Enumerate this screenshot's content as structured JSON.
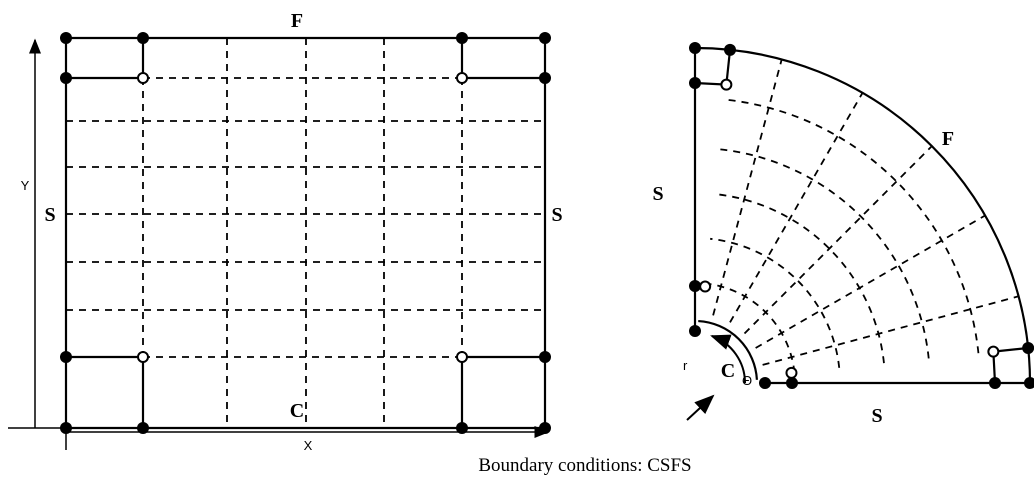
{
  "left_panel": {
    "top_label": "F",
    "bottom_label": "C",
    "left_label": "S",
    "right_label": "S",
    "y_axis_label": "Y",
    "x_axis_label": "X"
  },
  "right_panel": {
    "arc_label": "F",
    "left_label": "S",
    "bottom_label": "S",
    "corner_label": "C",
    "corner_subscript": "Θ",
    "radius_label": "r"
  },
  "caption": "Boundary conditions: CSFS"
}
